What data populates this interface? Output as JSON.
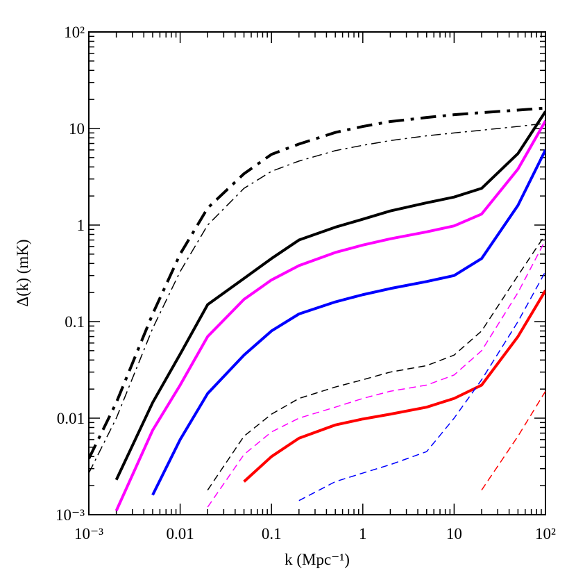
{
  "chart_data": {
    "type": "line",
    "xlabel": "k (Mpc⁻¹)",
    "ylabel": "Δ(k) (mK)",
    "xscale": "log",
    "yscale": "log",
    "xlim": [
      0.001,
      100
    ],
    "ylim": [
      0.001,
      100
    ],
    "xticks": [
      {
        "value": 0.001,
        "label": "10⁻³"
      },
      0.01,
      0.1,
      1,
      10,
      {
        "value": 100,
        "label": "10²"
      }
    ],
    "yticks": [
      {
        "value": 0.001,
        "label": "10⁻³"
      },
      0.01,
      0.1,
      1,
      10,
      {
        "value": 100,
        "label": "10²"
      }
    ],
    "x": [
      0.001,
      0.002,
      0.005,
      0.01,
      0.02,
      0.05,
      0.1,
      0.2,
      0.5,
      1,
      2,
      5,
      10,
      20,
      50,
      100
    ],
    "series": [
      {
        "color": "#000000",
        "linestyle": "dashdot",
        "linewidth": 4,
        "values": [
          0.0038,
          0.0145,
          0.12,
          0.5,
          1.5,
          3.4,
          5.4,
          6.9,
          9.1,
          10.5,
          11.8,
          13,
          13.9,
          14.6,
          15.5,
          16.3
        ]
      },
      {
        "color": "#000000",
        "linestyle": "dashdot",
        "linewidth": 1.5,
        "values": [
          0.0027,
          0.01,
          0.085,
          0.33,
          1.0,
          2.4,
          3.6,
          4.6,
          5.9,
          6.7,
          7.5,
          8.4,
          9.0,
          9.6,
          10.5,
          11.3
        ]
      },
      {
        "color": "#000000",
        "linestyle": "solid",
        "linewidth": 4,
        "values": [
          null,
          0.0023,
          0.0145,
          0.046,
          0.15,
          0.28,
          0.45,
          0.7,
          0.95,
          1.15,
          1.4,
          1.7,
          1.95,
          2.4,
          5.5,
          15
        ]
      },
      {
        "color": "#ff00ff",
        "linestyle": "solid",
        "linewidth": 4,
        "values": [
          null,
          0.0011,
          0.0075,
          0.022,
          0.07,
          0.17,
          0.27,
          0.38,
          0.52,
          0.62,
          0.72,
          0.85,
          0.98,
          1.3,
          3.8,
          12
        ]
      },
      {
        "color": "#0000ff",
        "linestyle": "solid",
        "linewidth": 4,
        "values": [
          null,
          null,
          0.0016,
          0.006,
          0.018,
          0.045,
          0.08,
          0.12,
          0.16,
          0.19,
          0.22,
          0.26,
          0.3,
          0.45,
          1.6,
          6
        ]
      },
      {
        "color": "#ff0000",
        "linestyle": "solid",
        "linewidth": 4,
        "values": [
          null,
          null,
          null,
          null,
          null,
          0.0022,
          0.004,
          0.0062,
          0.0085,
          0.0098,
          0.011,
          0.013,
          0.016,
          0.022,
          0.07,
          0.21
        ]
      },
      {
        "color": "#000000",
        "linestyle": "dashed",
        "linewidth": 1.5,
        "values": [
          null,
          null,
          null,
          null,
          0.0018,
          0.0065,
          0.011,
          0.016,
          0.021,
          0.025,
          0.03,
          0.035,
          0.045,
          0.08,
          0.3,
          0.8
        ]
      },
      {
        "color": "#ff00ff",
        "linestyle": "dashed",
        "linewidth": 1.5,
        "values": [
          null,
          null,
          null,
          null,
          0.0012,
          0.0042,
          0.0072,
          0.01,
          0.013,
          0.016,
          0.019,
          0.022,
          0.028,
          0.05,
          0.2,
          0.7
        ]
      },
      {
        "color": "#0000ff",
        "linestyle": "dashed",
        "linewidth": 1.5,
        "values": [
          null,
          null,
          null,
          null,
          null,
          null,
          null,
          0.0014,
          0.0022,
          0.0027,
          0.0033,
          0.0045,
          0.01,
          0.025,
          0.1,
          0.33
        ]
      },
      {
        "color": "#ff0000",
        "linestyle": "dashed",
        "linewidth": 1.5,
        "values": [
          null,
          null,
          null,
          null,
          null,
          null,
          null,
          null,
          null,
          null,
          null,
          null,
          null,
          0.0018,
          0.0065,
          0.019
        ]
      }
    ]
  }
}
